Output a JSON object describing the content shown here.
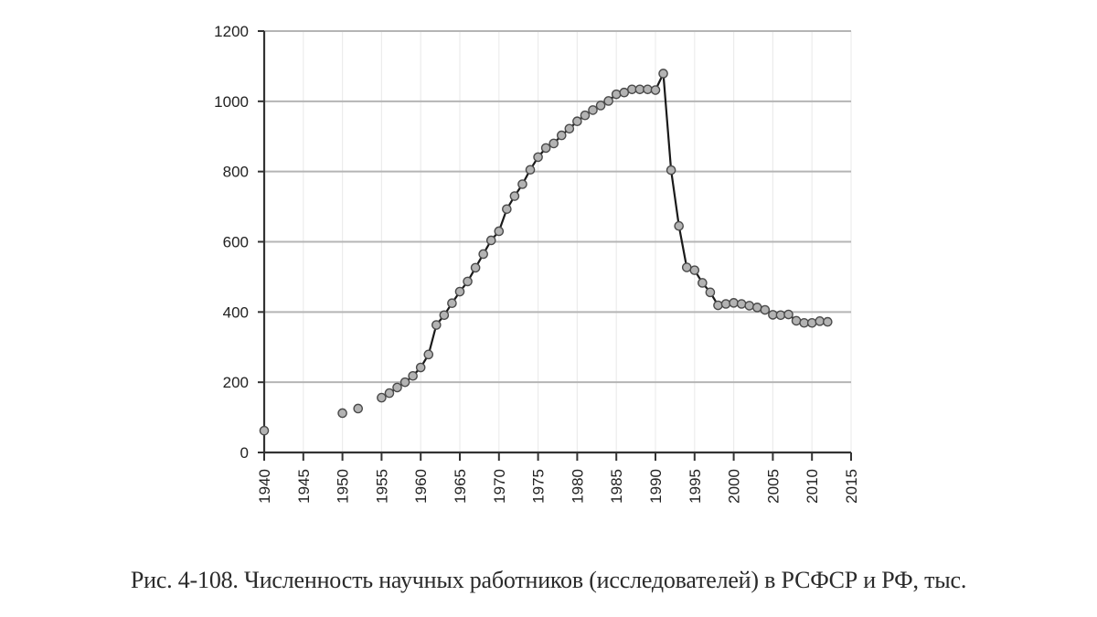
{
  "caption": "Рис. 4-108. Численность научных работников (исследователей) в РСФСР и РФ, тыс.",
  "chart_data": {
    "type": "line",
    "title": "Численность научных работников (исследователей) в РСФСР и РФ, тыс.",
    "figure_label": "Рис. 4-108.",
    "xlabel": "",
    "ylabel": "",
    "xlim": [
      1940,
      2015
    ],
    "ylim": [
      0,
      1200
    ],
    "xticks": [
      1940,
      1945,
      1950,
      1955,
      1960,
      1965,
      1970,
      1975,
      1980,
      1985,
      1990,
      1995,
      2000,
      2005,
      2010,
      2015
    ],
    "yticks": [
      0,
      200,
      400,
      600,
      800,
      1000,
      1200
    ],
    "grid": {
      "horizontal": true,
      "vertical": true
    },
    "legend": null,
    "series": [
      {
        "name": "Научные работники, тыс.",
        "marker": "circle",
        "marker_fill": "#b3b3b3",
        "marker_stroke": "#4a4a4a",
        "line_color": "#1a1a1a",
        "points": [
          {
            "x": 1940,
            "y": 62,
            "connected": false
          },
          {
            "x": 1950,
            "y": 112,
            "connected": false
          },
          {
            "x": 1952,
            "y": 125,
            "connected": false
          },
          {
            "x": 1955,
            "y": 156
          },
          {
            "x": 1956,
            "y": 169
          },
          {
            "x": 1957,
            "y": 185
          },
          {
            "x": 1958,
            "y": 200
          },
          {
            "x": 1959,
            "y": 218
          },
          {
            "x": 1960,
            "y": 242
          },
          {
            "x": 1961,
            "y": 279
          },
          {
            "x": 1962,
            "y": 363
          },
          {
            "x": 1963,
            "y": 391
          },
          {
            "x": 1964,
            "y": 425
          },
          {
            "x": 1965,
            "y": 458
          },
          {
            "x": 1966,
            "y": 487
          },
          {
            "x": 1967,
            "y": 526
          },
          {
            "x": 1968,
            "y": 565
          },
          {
            "x": 1969,
            "y": 604
          },
          {
            "x": 1970,
            "y": 630
          },
          {
            "x": 1971,
            "y": 693
          },
          {
            "x": 1972,
            "y": 730
          },
          {
            "x": 1973,
            "y": 764
          },
          {
            "x": 1974,
            "y": 805
          },
          {
            "x": 1975,
            "y": 841
          },
          {
            "x": 1976,
            "y": 867
          },
          {
            "x": 1977,
            "y": 880
          },
          {
            "x": 1978,
            "y": 903
          },
          {
            "x": 1979,
            "y": 922
          },
          {
            "x": 1980,
            "y": 943
          },
          {
            "x": 1981,
            "y": 960
          },
          {
            "x": 1982,
            "y": 975
          },
          {
            "x": 1983,
            "y": 988
          },
          {
            "x": 1984,
            "y": 1001
          },
          {
            "x": 1985,
            "y": 1020
          },
          {
            "x": 1986,
            "y": 1025
          },
          {
            "x": 1987,
            "y": 1034
          },
          {
            "x": 1988,
            "y": 1034
          },
          {
            "x": 1989,
            "y": 1034
          },
          {
            "x": 1990,
            "y": 1032
          },
          {
            "x": 1991,
            "y": 1079
          },
          {
            "x": 1992,
            "y": 804
          },
          {
            "x": 1993,
            "y": 645
          },
          {
            "x": 1994,
            "y": 527
          },
          {
            "x": 1995,
            "y": 519
          },
          {
            "x": 1996,
            "y": 483
          },
          {
            "x": 1997,
            "y": 456
          },
          {
            "x": 1998,
            "y": 419
          },
          {
            "x": 1999,
            "y": 423
          },
          {
            "x": 2000,
            "y": 426
          },
          {
            "x": 2001,
            "y": 423
          },
          {
            "x": 2002,
            "y": 418
          },
          {
            "x": 2003,
            "y": 413
          },
          {
            "x": 2004,
            "y": 406
          },
          {
            "x": 2005,
            "y": 392
          },
          {
            "x": 2006,
            "y": 391
          },
          {
            "x": 2007,
            "y": 393
          },
          {
            "x": 2008,
            "y": 375
          },
          {
            "x": 2009,
            "y": 369
          },
          {
            "x": 2010,
            "y": 369
          },
          {
            "x": 2011,
            "y": 374
          },
          {
            "x": 2012,
            "y": 372
          }
        ]
      }
    ],
    "layout": {
      "plot_left": 289,
      "plot_right": 931,
      "plot_top": 34,
      "plot_bottom": 495,
      "hgrid_color": "#b5b5b5",
      "vgrid_color": "#ececec",
      "axis_color": "#333333"
    }
  }
}
